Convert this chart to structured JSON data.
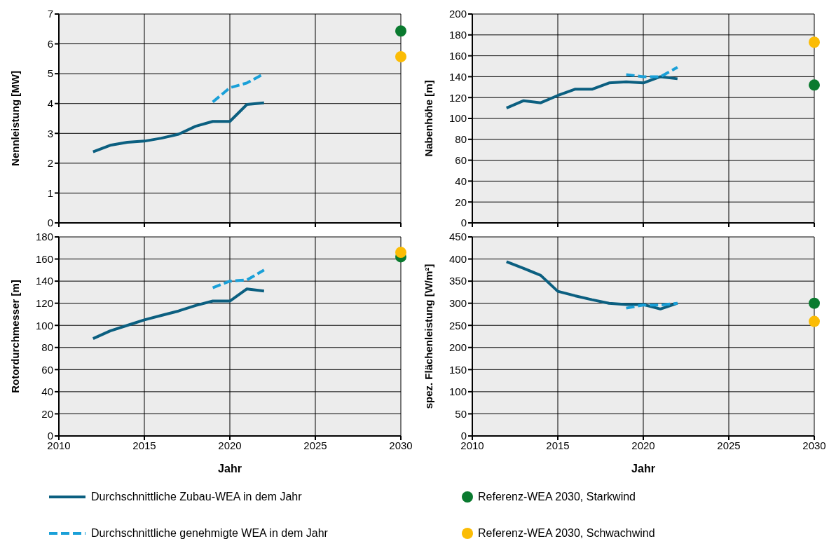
{
  "chart_data": [
    {
      "type": "line",
      "ylabel": "Nennleistung [MW]",
      "x": [
        2012,
        2013,
        2014,
        2015,
        2016,
        2017,
        2018,
        2019,
        2020,
        2021,
        2022
      ],
      "xlim": [
        2010,
        2030
      ],
      "xticks": [
        2010,
        2015,
        2020,
        2025,
        2030
      ],
      "ylim": [
        0,
        7
      ],
      "yticks": [
        0,
        1,
        2,
        3,
        4,
        5,
        6,
        7
      ],
      "grid": true,
      "tick_labels": "y",
      "series": [
        {
          "color": "#0b5f80",
          "values": [
            2.38,
            2.6,
            2.7,
            2.74,
            2.84,
            2.97,
            3.24,
            3.4,
            3.4,
            3.97,
            4.02
          ]
        },
        {
          "color": "#1aa0d8",
          "line_style": "dashed",
          "x": [
            2019,
            2020,
            2021,
            2022
          ],
          "values": [
            4.05,
            4.53,
            4.69,
            5.0
          ]
        },
        {
          "type": "scatter",
          "color": "#0a7a2f",
          "x": [
            2030
          ],
          "values": [
            6.43
          ]
        },
        {
          "type": "scatter",
          "color": "#fbbc05",
          "x": [
            2030
          ],
          "values": [
            5.57
          ]
        }
      ]
    },
    {
      "type": "line",
      "ylabel": "Nabenhöhe [m]",
      "x": [
        2012,
        2013,
        2014,
        2015,
        2016,
        2017,
        2018,
        2019,
        2020,
        2021,
        2022
      ],
      "xlim": [
        2010,
        2030
      ],
      "xticks": [
        2010,
        2015,
        2020,
        2025,
        2030
      ],
      "ylim": [
        0,
        200
      ],
      "yticks": [
        0,
        20,
        40,
        60,
        80,
        100,
        120,
        140,
        160,
        180,
        200
      ],
      "grid": true,
      "tick_labels": "y",
      "series": [
        {
          "color": "#0b5f80",
          "values": [
            110,
            117,
            115,
            122,
            128,
            128,
            134,
            135,
            134,
            140,
            138
          ]
        },
        {
          "color": "#1aa0d8",
          "line_style": "dashed",
          "x": [
            2019,
            2020,
            2021,
            2022
          ],
          "values": [
            142,
            140,
            140,
            149
          ]
        },
        {
          "type": "scatter",
          "color": "#0a7a2f",
          "x": [
            2030
          ],
          "values": [
            132
          ]
        },
        {
          "type": "scatter",
          "color": "#fbbc05",
          "x": [
            2030
          ],
          "values": [
            173
          ]
        }
      ]
    },
    {
      "type": "line",
      "ylabel": "Rotordurchmesser [m]",
      "xlabel": "Jahr",
      "legend": "bottom",
      "x": [
        2012,
        2013,
        2014,
        2015,
        2016,
        2017,
        2018,
        2019,
        2020,
        2021,
        2022
      ],
      "xlim": [
        2010,
        2030
      ],
      "xticks": [
        2010,
        2015,
        2020,
        2025,
        2030
      ],
      "ylim": [
        0,
        180
      ],
      "yticks": [
        0,
        20,
        40,
        60,
        80,
        100,
        120,
        140,
        160,
        180
      ],
      "grid": true,
      "series": [
        {
          "name": "Durchschnittliche Zubau-WEA in dem Jahr",
          "color": "#0b5f80",
          "values": [
            88,
            95,
            100,
            105,
            109,
            113,
            118,
            122,
            122,
            133,
            131
          ]
        },
        {
          "name": "Durchschnittliche genehmigte WEA in dem Jahr",
          "color": "#1aa0d8",
          "line_style": "dashed",
          "x": [
            2019,
            2020,
            2021,
            2022
          ],
          "values": [
            134,
            140,
            141,
            150
          ]
        },
        {
          "type": "scatter",
          "color": "#0a7a2f",
          "x": [
            2030
          ],
          "values": [
            162
          ]
        },
        {
          "type": "scatter",
          "color": "#fbbc05",
          "x": [
            2030
          ],
          "values": [
            166
          ]
        }
      ]
    },
    {
      "type": "line",
      "ylabel": "spez. Flächenleistung [W/m²]",
      "xlabel": "Jahr",
      "legend": "bottom",
      "x": [
        2012,
        2013,
        2014,
        2015,
        2016,
        2017,
        2018,
        2019,
        2020,
        2021,
        2022
      ],
      "xlim": [
        2010,
        2030
      ],
      "xticks": [
        2010,
        2015,
        2020,
        2025,
        2030
      ],
      "ylim": [
        0,
        450
      ],
      "yticks": [
        0,
        50,
        100,
        150,
        200,
        250,
        300,
        350,
        400,
        450
      ],
      "grid": true,
      "series": [
        {
          "color": "#0b5f80",
          "values": [
            394,
            379,
            363,
            327,
            317,
            308,
            300,
            297,
            297,
            287,
            300
          ]
        },
        {
          "color": "#1aa0d8",
          "line_style": "dashed",
          "x": [
            2019,
            2020,
            2021,
            2022
          ],
          "values": [
            289,
            296,
            296,
            300
          ]
        },
        {
          "type": "scatter",
          "name": "Referenz-WEA 2030, Starkwind",
          "color": "#0a7a2f",
          "x": [
            2030
          ],
          "values": [
            300
          ]
        },
        {
          "type": "scatter",
          "name": "Referenz-WEA 2030, Schwachwind",
          "color": "#fbbc05",
          "x": [
            2030
          ],
          "values": [
            259
          ]
        }
      ]
    }
  ]
}
